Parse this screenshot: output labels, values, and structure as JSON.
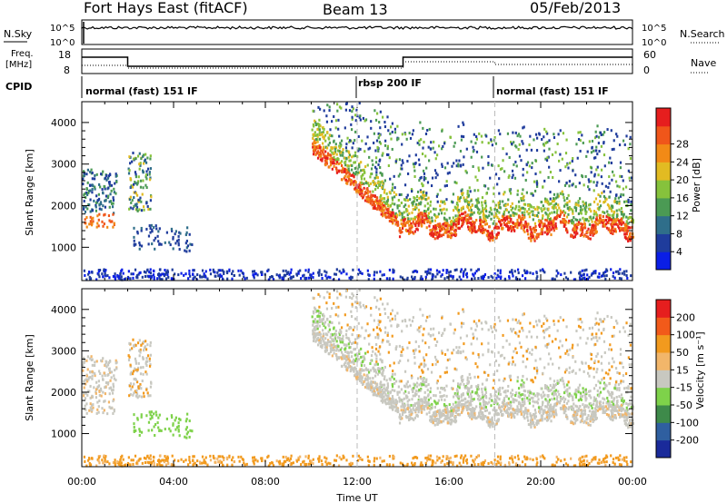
{
  "header": {
    "title": "Fort Hays East (fitACF)",
    "beam": "Beam 13",
    "date": "05/Feb/2013"
  },
  "top_panels": {
    "nsky_label": "N.Sky",
    "nsearch_label": "N.Search",
    "noise_tick_top": "10^5",
    "noise_tick_bottom": "10^0",
    "freq_label_line1": "Freq.",
    "freq_label_line2": "[MHz]",
    "freq_ticks": [
      "18",
      "8"
    ],
    "nave_label": "Nave",
    "nave_ticks": [
      "60",
      "0"
    ],
    "cpid_label": "CPID",
    "cpid_segments": [
      {
        "label": "normal (fast) 151 IF",
        "start_hour": 0,
        "end_hour": 12
      },
      {
        "label": "rbsp 200 IF",
        "start_hour": 12,
        "end_hour": 18
      },
      {
        "label": "normal (fast) 151 IF",
        "start_hour": 18,
        "end_hour": 24
      }
    ]
  },
  "chart_data": [
    {
      "type": "heatmap",
      "name": "power",
      "ylabel": "Slant Range [km]",
      "xlabel": "Time UT",
      "xlim": [
        0,
        24
      ],
      "ylim": [
        200,
        4500
      ],
      "yticks": [
        1000,
        2000,
        3000,
        4000
      ],
      "xtick_labels": [
        "00:00",
        "04:00",
        "08:00",
        "12:00",
        "16:00",
        "20:00",
        "00:00"
      ],
      "colorbar": {
        "label": "Power [dB]",
        "ticks": [
          "4",
          "8",
          "12",
          "16",
          "20",
          "24",
          "28"
        ],
        "colors": [
          "#0a1ee6",
          "#1f3c9c",
          "#2f6e8a",
          "#4b9a54",
          "#86c23c",
          "#e2bb22",
          "#f28a16",
          "#f0561a",
          "#e61e1e"
        ]
      },
      "features": [
        {
          "range_km": [
            1500,
            2900
          ],
          "time_h": [
            0,
            1.5
          ],
          "level": "medium"
        },
        {
          "range_km": [
            1900,
            3300
          ],
          "time_h": [
            2,
            3
          ],
          "level": "medium"
        },
        {
          "range_km": [
            1000,
            1600
          ],
          "time_h": [
            2.2,
            5
          ],
          "level": "low"
        },
        {
          "range_km": [
            1000,
            3600
          ],
          "time_h": [
            10,
            24
          ],
          "level": "high"
        }
      ]
    },
    {
      "type": "heatmap",
      "name": "velocity",
      "ylabel": "Slant Range [km]",
      "xlabel": "Time UT",
      "xlim": [
        0,
        24
      ],
      "ylim": [
        200,
        4500
      ],
      "yticks": [
        1000,
        2000,
        3000,
        4000
      ],
      "xtick_labels": [
        "00:00",
        "04:00",
        "08:00",
        "12:00",
        "16:00",
        "20:00",
        "00:00"
      ],
      "colorbar": {
        "label": "Velocity [m s⁻¹]",
        "ticks": [
          "200",
          "100",
          "50",
          "15",
          "-15",
          "-50",
          "-100",
          "-200"
        ],
        "colors": [
          "#1a2a9a",
          "#2f5fa0",
          "#3e8a4a",
          "#7ed24a",
          "#c8c8c0",
          "#f2b66a",
          "#f29a1e",
          "#f25a1a",
          "#e61e1e"
        ]
      },
      "features": [
        {
          "range_km": [
            1100,
            1400
          ],
          "time_h": [
            2.2,
            4.5
          ],
          "level": "green"
        },
        {
          "range_km": [
            1200,
            3500
          ],
          "time_h": [
            10,
            24
          ],
          "level": "grey"
        }
      ]
    }
  ]
}
